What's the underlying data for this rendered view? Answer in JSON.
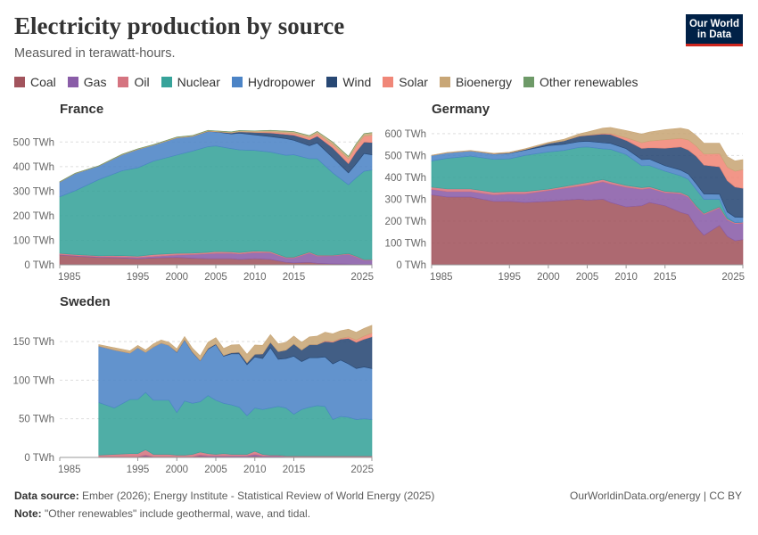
{
  "header": {
    "title": "Electricity production by source",
    "subtitle": "Measured in terawatt-hours.",
    "logo_line1": "Our World",
    "logo_line2": "in Data"
  },
  "legend": [
    {
      "label": "Coal",
      "color": "#a2545d"
    },
    {
      "label": "Gas",
      "color": "#8a5da8"
    },
    {
      "label": "Oil",
      "color": "#d57480"
    },
    {
      "label": "Nuclear",
      "color": "#37a39a"
    },
    {
      "label": "Hydropower",
      "color": "#4c84c6"
    },
    {
      "label": "Wind",
      "color": "#284874"
    },
    {
      "label": "Solar",
      "color": "#f08778"
    },
    {
      "label": "Bioenergy",
      "color": "#c8a676"
    },
    {
      "label": "Other renewables",
      "color": "#6e9a68"
    }
  ],
  "footer": {
    "source_label": "Data source:",
    "source_text": "Ember (2026); Energy Institute - Statistical Review of World Energy (2025)",
    "note_label": "Note:",
    "note_text": "\"Other renewables\" include geothermal, wave, and tidal.",
    "credit": "OurWorldinData.org/energy | CC BY"
  },
  "chart_data": [
    {
      "type": "area",
      "stacked": true,
      "title": "France",
      "unit": "TWh",
      "xlim": [
        1985,
        2025
      ],
      "x_ticks": [
        1985,
        1995,
        2000,
        2005,
        2010,
        2015,
        2025
      ],
      "ylim": [
        0,
        570
      ],
      "y_ticks": [
        0,
        100,
        200,
        300,
        400,
        500
      ],
      "y_tick_labels": [
        "0 TWh",
        "100 TWh",
        "200 TWh",
        "300 TWh",
        "400 TWh",
        "500 TWh"
      ],
      "x": [
        1985,
        1987,
        1990,
        1993,
        1995,
        1997,
        2000,
        2002,
        2004,
        2005,
        2007,
        2008,
        2010,
        2012,
        2014,
        2015,
        2017,
        2018,
        2020,
        2022,
        2023,
        2024,
        2025
      ],
      "series": [
        {
          "name": "Coal",
          "values": [
            40,
            35,
            30,
            28,
            25,
            28,
            30,
            27,
            25,
            25,
            25,
            22,
            25,
            22,
            10,
            8,
            10,
            6,
            4,
            3,
            2,
            1,
            1
          ]
        },
        {
          "name": "Gas",
          "values": [
            2,
            3,
            3,
            4,
            5,
            6,
            10,
            15,
            20,
            22,
            22,
            22,
            25,
            27,
            18,
            20,
            38,
            30,
            33,
            40,
            30,
            18,
            18
          ]
        },
        {
          "name": "Oil",
          "values": [
            5,
            4,
            4,
            6,
            5,
            8,
            7,
            6,
            6,
            7,
            6,
            6,
            6,
            5,
            3,
            3,
            4,
            3,
            2,
            3,
            3,
            2,
            2
          ]
        },
        {
          "name": "Nuclear",
          "values": [
            230,
            260,
            310,
            345,
            360,
            380,
            400,
            415,
            430,
            430,
            420,
            418,
            410,
            405,
            415,
            417,
            380,
            393,
            335,
            280,
            320,
            360,
            365
          ]
        },
        {
          "name": "Hydropower",
          "values": [
            60,
            70,
            55,
            65,
            75,
            65,
            70,
            60,
            62,
            57,
            60,
            68,
            63,
            63,
            68,
            59,
            53,
            64,
            62,
            48,
            57,
            72,
            62
          ]
        },
        {
          "name": "Wind",
          "values": [
            0,
            0,
            0,
            0,
            0,
            0,
            0,
            0,
            1,
            1,
            4,
            6,
            10,
            15,
            17,
            21,
            24,
            28,
            40,
            38,
            49,
            47,
            50
          ]
        },
        {
          "name": "Solar",
          "values": [
            0,
            0,
            0,
            0,
            0,
            0,
            0,
            0,
            0,
            0,
            0,
            0,
            1,
            4,
            6,
            7,
            9,
            10,
            13,
            19,
            22,
            24,
            30
          ]
        },
        {
          "name": "Bioenergy",
          "values": [
            1,
            1,
            1,
            2,
            2,
            2,
            3,
            3,
            3,
            3,
            4,
            4,
            5,
            6,
            7,
            7,
            8,
            9,
            10,
            10,
            10,
            10,
            10
          ]
        },
        {
          "name": "Other renewables",
          "values": [
            0.5,
            0.5,
            0.5,
            0.5,
            0.5,
            0.5,
            0.5,
            0.5,
            0.5,
            0.5,
            0.5,
            0.5,
            0.5,
            0.5,
            0.5,
            0.5,
            0.5,
            0.5,
            0.5,
            0.5,
            0.5,
            0.5,
            0.5
          ]
        }
      ]
    },
    {
      "type": "area",
      "stacked": true,
      "title": "Germany",
      "unit": "TWh",
      "xlim": [
        1985,
        2025
      ],
      "x_ticks": [
        1985,
        1995,
        2000,
        2005,
        2010,
        2015,
        2025
      ],
      "ylim": [
        0,
        640
      ],
      "y_ticks": [
        0,
        100,
        200,
        300,
        400,
        500,
        600
      ],
      "y_tick_labels": [
        "0 TWh",
        "100 TWh",
        "200 TWh",
        "300 TWh",
        "400 TWh",
        "500 TWh",
        "600 TWh"
      ],
      "x": [
        1985,
        1987,
        1990,
        1993,
        1995,
        1997,
        2000,
        2002,
        2004,
        2005,
        2007,
        2008,
        2010,
        2012,
        2013,
        2015,
        2017,
        2018,
        2019,
        2020,
        2022,
        2023,
        2024,
        2025
      ],
      "series": [
        {
          "name": "Coal",
          "values": [
            320,
            310,
            310,
            290,
            290,
            285,
            290,
            295,
            300,
            295,
            300,
            285,
            265,
            270,
            285,
            270,
            240,
            230,
            175,
            135,
            180,
            130,
            110,
            115
          ]
        },
        {
          "name": "Gas",
          "values": [
            25,
            25,
            25,
            30,
            35,
            40,
            50,
            55,
            60,
            70,
            80,
            85,
            90,
            75,
            65,
            60,
            85,
            80,
            90,
            95,
            80,
            75,
            78,
            75
          ]
        },
        {
          "name": "Oil",
          "values": [
            10,
            12,
            12,
            12,
            10,
            10,
            6,
            8,
            10,
            11,
            10,
            10,
            8,
            8,
            7,
            6,
            6,
            5,
            5,
            5,
            5,
            5,
            5,
            5
          ]
        },
        {
          "name": "Nuclear",
          "values": [
            120,
            140,
            150,
            150,
            150,
            165,
            170,
            165,
            167,
            163,
            140,
            148,
            141,
            100,
            97,
            92,
            76,
            76,
            75,
            64,
            35,
            7,
            0,
            0
          ]
        },
        {
          "name": "Hydropower",
          "values": [
            25,
            25,
            24,
            24,
            25,
            24,
            29,
            28,
            26,
            26,
            28,
            27,
            27,
            28,
            29,
            25,
            26,
            24,
            26,
            25,
            23,
            25,
            25,
            22
          ]
        },
        {
          "name": "Wind",
          "values": [
            0,
            0,
            0,
            1,
            2,
            3,
            10,
            16,
            25,
            27,
            40,
            41,
            38,
            51,
            52,
            80,
            106,
            110,
            126,
            132,
            125,
            143,
            138,
            133
          ]
        },
        {
          "name": "Solar",
          "values": [
            0,
            0,
            0,
            0,
            0,
            0,
            0,
            0,
            1,
            1,
            3,
            4,
            12,
            26,
            31,
            39,
            39,
            46,
            46,
            50,
            60,
            62,
            72,
            85
          ]
        },
        {
          "name": "Bioenergy",
          "values": [
            1,
            2,
            2,
            3,
            3,
            4,
            5,
            7,
            10,
            14,
            24,
            28,
            33,
            40,
            41,
            46,
            47,
            47,
            48,
            50,
            48,
            48,
            47,
            46
          ]
        },
        {
          "name": "Other renewables",
          "values": [
            0,
            0,
            0,
            0,
            0,
            0,
            0,
            0,
            0,
            0,
            0,
            0,
            0,
            0,
            0,
            0,
            0,
            0,
            0,
            0,
            0,
            0,
            0,
            0
          ]
        }
      ]
    },
    {
      "type": "area",
      "stacked": true,
      "title": "Sweden",
      "unit": "TWh",
      "xlim": [
        1985,
        2025
      ],
      "x_ticks": [
        1985,
        1995,
        2000,
        2005,
        2010,
        2015,
        2025
      ],
      "ylim": [
        0,
        180
      ],
      "y_ticks": [
        0,
        50,
        100,
        150
      ],
      "y_tick_labels": [
        "0 TWh",
        "50 TWh",
        "100 TWh",
        "150 TWh"
      ],
      "x": [
        1990,
        1992,
        1994,
        1995,
        1996,
        1997,
        1998,
        1999,
        2000,
        2001,
        2002,
        2003,
        2004,
        2005,
        2006,
        2007,
        2008,
        2009,
        2010,
        2011,
        2012,
        2013,
        2014,
        2015,
        2016,
        2017,
        2018,
        2019,
        2020,
        2021,
        2022,
        2023,
        2024,
        2025
      ],
      "series": [
        {
          "name": "Coal",
          "values": [
            1,
            1,
            1,
            1,
            2,
            1,
            1,
            1,
            1,
            1,
            1,
            2,
            1,
            1,
            1,
            1,
            1,
            1,
            2,
            1,
            1,
            1,
            1,
            1,
            1,
            1,
            1,
            1,
            1,
            1,
            1,
            1,
            1,
            1
          ]
        },
        {
          "name": "Gas",
          "values": [
            0,
            0,
            0,
            0,
            1,
            0,
            0,
            0,
            0,
            0,
            0,
            1,
            1,
            1,
            1,
            1,
            1,
            1,
            2,
            1,
            1,
            1,
            0,
            0,
            0,
            0,
            0,
            0,
            0,
            0,
            0,
            0,
            0,
            0
          ]
        },
        {
          "name": "Oil",
          "values": [
            2,
            3,
            4,
            4,
            7,
            3,
            3,
            3,
            2,
            2,
            3,
            4,
            3,
            2,
            3,
            2,
            2,
            2,
            4,
            2,
            1,
            1,
            1,
            1,
            1,
            1,
            1,
            1,
            1,
            1,
            1,
            1,
            1,
            1
          ]
        },
        {
          "name": "Nuclear",
          "values": [
            68,
            60,
            70,
            70,
            74,
            70,
            70,
            70,
            55,
            70,
            66,
            65,
            75,
            70,
            65,
            64,
            61,
            50,
            56,
            58,
            61,
            63,
            62,
            54,
            60,
            63,
            65,
            64,
            47,
            51,
            50,
            47,
            48,
            47
          ]
        },
        {
          "name": "Hydropower",
          "values": [
            73,
            75,
            60,
            67,
            52,
            69,
            74,
            71,
            78,
            79,
            66,
            53,
            60,
            72,
            61,
            66,
            69,
            66,
            66,
            66,
            78,
            61,
            64,
            75,
            62,
            64,
            62,
            64,
            72,
            73,
            69,
            66,
            67,
            66
          ]
        },
        {
          "name": "Wind",
          "values": [
            0,
            0,
            0,
            0,
            0,
            0,
            0,
            0,
            0.5,
            0.5,
            0.5,
            0.5,
            1,
            1,
            1,
            1.5,
            2,
            2.5,
            3.5,
            6,
            7,
            10,
            11,
            16,
            15,
            17,
            17,
            20,
            28,
            27,
            33,
            34,
            36,
            41
          ]
        },
        {
          "name": "Solar",
          "values": [
            0,
            0,
            0,
            0,
            0,
            0,
            0,
            0,
            0,
            0,
            0,
            0,
            0,
            0,
            0,
            0,
            0,
            0,
            0,
            0,
            0,
            0,
            0,
            0,
            0,
            0,
            0,
            1,
            1,
            1,
            2,
            3,
            4,
            5
          ]
        },
        {
          "name": "Bioenergy",
          "values": [
            2,
            3,
            3,
            3,
            3,
            4,
            4,
            4,
            4,
            4,
            5,
            6,
            8,
            8,
            9,
            10,
            10,
            11,
            12,
            11,
            10,
            10,
            10,
            10,
            10,
            10,
            11,
            11,
            10,
            10,
            10,
            10,
            10,
            10
          ]
        },
        {
          "name": "Other renewables",
          "values": [
            0,
            0,
            0,
            0,
            0,
            0,
            0,
            0,
            0,
            0,
            0,
            0,
            0,
            0,
            0,
            0,
            0,
            0,
            0,
            0,
            0,
            0,
            0,
            0,
            0,
            0,
            0,
            0,
            0,
            0,
            0,
            0,
            0,
            0
          ]
        }
      ]
    }
  ]
}
